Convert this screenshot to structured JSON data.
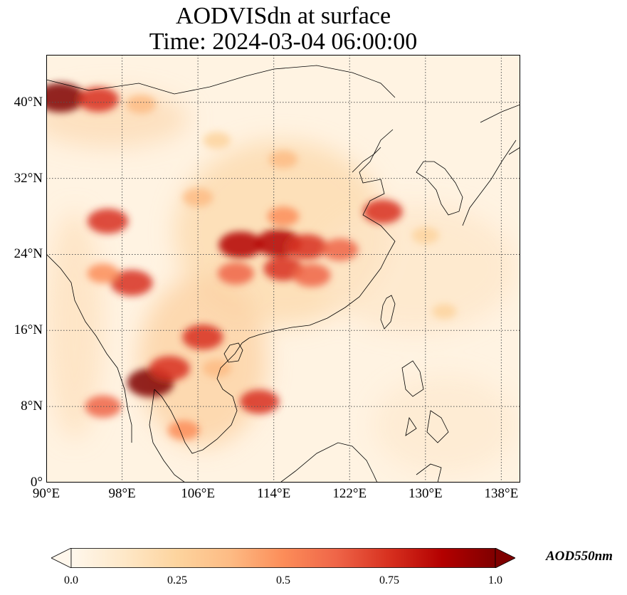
{
  "title": {
    "line1": "AODVISdn at surface",
    "line2": "Time: 2024-03-04 06:00:00"
  },
  "map": {
    "extent": {
      "lon": [
        90,
        140
      ],
      "lat": [
        0,
        45
      ]
    },
    "gridlines": {
      "style": "dotted",
      "color": "#555555"
    },
    "lon_ticks": [
      {
        "value": 90,
        "label": "90°E"
      },
      {
        "value": 98,
        "label": "98°E"
      },
      {
        "value": 106,
        "label": "106°E"
      },
      {
        "value": 114,
        "label": "114°E"
      },
      {
        "value": 122,
        "label": "122°E"
      },
      {
        "value": 130,
        "label": "130°E"
      },
      {
        "value": 138,
        "label": "138°E"
      }
    ],
    "lat_ticks": [
      {
        "value": 0,
        "label": "0°"
      },
      {
        "value": 8,
        "label": "8°N"
      },
      {
        "value": 16,
        "label": "16°N"
      },
      {
        "value": 24,
        "label": "24°N"
      },
      {
        "value": 32,
        "label": "32°N"
      },
      {
        "value": 40,
        "label": "40°N"
      }
    ],
    "hotspots": [
      {
        "lon": 91.5,
        "lat": 40.5,
        "value": 1.0
      },
      {
        "lon": 95.5,
        "lat": 40.3,
        "value": 0.75
      },
      {
        "lon": 100.0,
        "lat": 39.8,
        "value": 0.4
      },
      {
        "lon": 108.0,
        "lat": 36.0,
        "value": 0.3
      },
      {
        "lon": 115.0,
        "lat": 34.0,
        "value": 0.35
      },
      {
        "lon": 110.5,
        "lat": 25.0,
        "value": 0.85
      },
      {
        "lon": 114.5,
        "lat": 25.2,
        "value": 0.9
      },
      {
        "lon": 117.5,
        "lat": 24.8,
        "value": 0.75
      },
      {
        "lon": 115.0,
        "lat": 22.5,
        "value": 0.7
      },
      {
        "lon": 110.0,
        "lat": 22.0,
        "value": 0.6
      },
      {
        "lon": 118.0,
        "lat": 21.8,
        "value": 0.65
      },
      {
        "lon": 115.0,
        "lat": 28.0,
        "value": 0.45
      },
      {
        "lon": 106.0,
        "lat": 30.0,
        "value": 0.4
      },
      {
        "lon": 96.5,
        "lat": 27.5,
        "value": 0.75
      },
      {
        "lon": 99.0,
        "lat": 21.0,
        "value": 0.8
      },
      {
        "lon": 96.0,
        "lat": 22.0,
        "value": 0.45
      },
      {
        "lon": 106.5,
        "lat": 15.3,
        "value": 0.75
      },
      {
        "lon": 101.0,
        "lat": 10.5,
        "value": 0.95
      },
      {
        "lon": 103.0,
        "lat": 12.0,
        "value": 0.75
      },
      {
        "lon": 96.0,
        "lat": 8.0,
        "value": 0.6
      },
      {
        "lon": 112.5,
        "lat": 8.5,
        "value": 0.7
      },
      {
        "lon": 125.5,
        "lat": 28.5,
        "value": 0.7
      },
      {
        "lon": 121.0,
        "lat": 24.5,
        "value": 0.6
      },
      {
        "lon": 104.5,
        "lat": 5.5,
        "value": 0.45
      },
      {
        "lon": 108.0,
        "lat": 12.0,
        "value": 0.35
      },
      {
        "lon": 130.0,
        "lat": 26.0,
        "value": 0.3
      },
      {
        "lon": 132.0,
        "lat": 18.0,
        "value": 0.2
      }
    ]
  },
  "colorbar": {
    "colormap": "OrRd",
    "colors": [
      "#fff7ec",
      "#fee8c8",
      "#fdd49e",
      "#fdbb84",
      "#fc8d59",
      "#ef6548",
      "#d7301f",
      "#b30000",
      "#7f0000"
    ],
    "range": [
      0.0,
      1.0
    ],
    "extend": "both",
    "ticks": [
      {
        "value": 0.0,
        "label": "0.0"
      },
      {
        "value": 0.25,
        "label": "0.25"
      },
      {
        "value": 0.5,
        "label": "0.5"
      },
      {
        "value": 0.75,
        "label": "0.75"
      },
      {
        "value": 1.0,
        "label": "1.0"
      }
    ],
    "label": "AOD550nm"
  }
}
